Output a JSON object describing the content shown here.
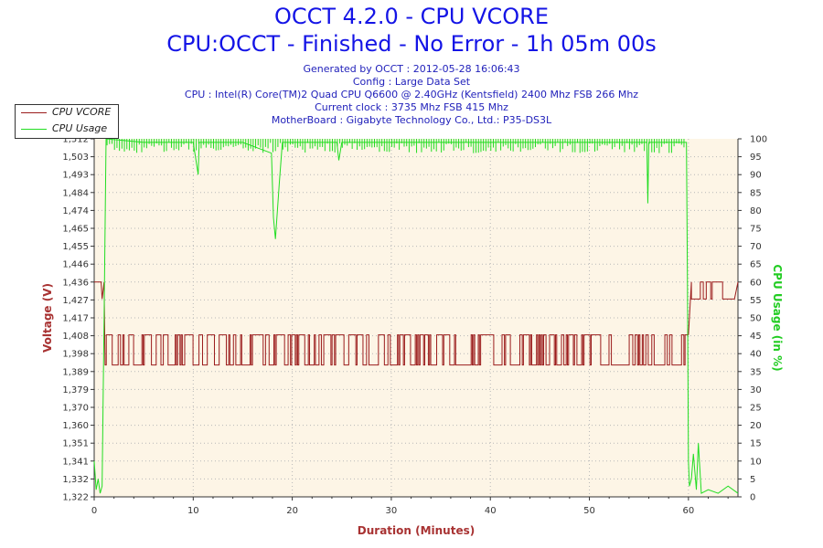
{
  "header": {
    "title": "OCCT 4.2.0 - CPU VCORE",
    "subtitle": "CPU:OCCT - Finished - No Error - 1h 05m 00s",
    "info_lines": [
      "Generated by OCCT : 2012-05-28 16:06:43",
      "Config : Large Data Set",
      "CPU : Intel(R) Core(TM)2 Quad CPU Q6600 @ 2.40GHz (Kentsfield) 2400 Mhz FSB 266 Mhz",
      "Current clock : 3735 Mhz FSB 415 Mhz",
      "MotherBoard : Gigabyte Technology Co., Ltd.: P35-DS3L"
    ]
  },
  "colors": {
    "title": "#1414e6",
    "vcore": "#9b1c1c",
    "usage": "#22dd22",
    "plot_bg": "#fdf5e6",
    "grid": "#b8b8b8"
  },
  "chart_data": {
    "type": "line",
    "xlabel": "Duration (Minutes)",
    "ylabel_left": "Voltage (V)",
    "ylabel_right": "CPU Usage (in %)",
    "xlim": [
      0,
      65
    ],
    "x_ticks": [
      "0",
      "10",
      "20",
      "30",
      "40",
      "50",
      "60"
    ],
    "ylim_left": [
      1.322,
      1.512
    ],
    "y_ticks_left": [
      "1,322",
      "1,332",
      "1,341",
      "1,351",
      "1,360",
      "1,370",
      "1,379",
      "1,389",
      "1,398",
      "1,408",
      "1,417",
      "1,427",
      "1,436",
      "1,446",
      "1,455",
      "1,465",
      "1,474",
      "1,484",
      "1,493",
      "1,503",
      "1,512"
    ],
    "ylim_right": [
      0,
      100
    ],
    "y_ticks_right": [
      "0",
      "5",
      "10",
      "15",
      "20",
      "25",
      "30",
      "35",
      "40",
      "45",
      "50",
      "55",
      "60",
      "65",
      "70",
      "75",
      "80",
      "85",
      "90",
      "95",
      "100"
    ],
    "grid": true,
    "legend_position": "top-left",
    "series": [
      {
        "name": "CPU VCORE",
        "axis": "left",
        "x": [
          0,
          0.7,
          0.8,
          1.0,
          1.1,
          59.7,
          59.9,
          60.1,
          60.3,
          65
        ],
        "values": [
          1.436,
          1.436,
          1.427,
          1.436,
          1.392,
          1.392,
          1.408,
          1.408,
          1.436,
          1.436
        ],
        "band_low": 1.392,
        "band_high": 1.408,
        "band_from": 1.1,
        "band_to": 59.9,
        "tail_low": 1.427,
        "tail_high": 1.436,
        "tail_from": 60.3,
        "tail_to": 64.5
      },
      {
        "name": "CPU Usage",
        "axis": "right",
        "x": [
          0,
          0.2,
          0.4,
          0.6,
          0.8,
          1.0,
          1.2,
          5,
          10,
          10.5,
          10.6,
          15,
          17.9,
          18.1,
          18.3,
          18.5,
          18.7,
          19,
          24.5,
          24.7,
          25,
          50,
          55.8,
          55.9,
          56,
          59.8,
          59.9,
          60,
          60.1,
          60.3,
          60.5,
          60.8,
          61,
          61.3,
          62,
          63,
          64,
          65
        ],
        "values": [
          10,
          2,
          5,
          1,
          3,
          50,
          100,
          99,
          99,
          90,
          99,
          99,
          96,
          78,
          72,
          80,
          88,
          99,
          99,
          94,
          99,
          99,
          99,
          82,
          99,
          99,
          60,
          10,
          3,
          5,
          12,
          2,
          15,
          1,
          2,
          1,
          3,
          1
        ]
      }
    ]
  }
}
